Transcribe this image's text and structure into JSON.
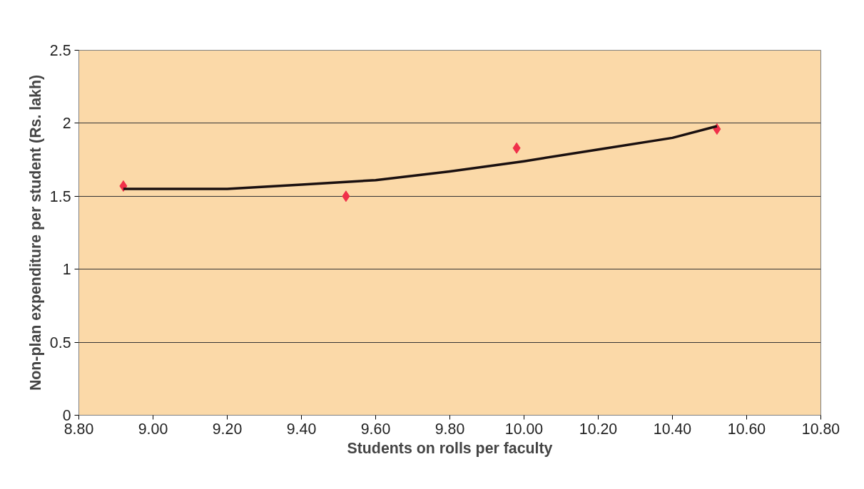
{
  "chart_data": {
    "type": "scatter",
    "xlabel": "Students on rolls per faculty",
    "ylabel": "Non-plan expenditure per student (Rs. lakh)",
    "series": [
      {
        "color": "#f0304a",
        "marker": "diamond",
        "x": [
          8.92,
          9.52,
          9.98,
          10.52
        ],
        "values": [
          1.57,
          1.5,
          1.83,
          1.96
        ]
      },
      {
        "type": "line",
        "color": "#1a1010",
        "line_style": "solid",
        "x": [
          8.92,
          9.2,
          9.4,
          9.6,
          9.8,
          10.0,
          10.2,
          10.4,
          10.52
        ],
        "values": [
          1.55,
          1.55,
          1.58,
          1.61,
          1.67,
          1.74,
          1.82,
          1.9,
          1.98
        ]
      }
    ],
    "xlim": [
      8.8,
      10.8
    ],
    "xticks": [
      {
        "value": 8.8,
        "label": "8.80"
      },
      {
        "value": 9.0,
        "label": "9.00"
      },
      {
        "value": 9.2,
        "label": "9.20"
      },
      {
        "value": 9.4,
        "label": "9.40"
      },
      {
        "value": 9.6,
        "label": "9.60"
      },
      {
        "value": 9.8,
        "label": "9.80"
      },
      {
        "value": 10.0,
        "label": "10.00"
      },
      {
        "value": 10.2,
        "label": "10.20"
      },
      {
        "value": 10.4,
        "label": "10.40"
      },
      {
        "value": 10.6,
        "label": "10.60"
      },
      {
        "value": 10.8,
        "label": "10.80"
      }
    ],
    "ylim": [
      0,
      2.5
    ],
    "yticks": [
      0,
      0.5,
      1,
      1.5,
      2,
      2.5
    ],
    "grid": "y"
  }
}
